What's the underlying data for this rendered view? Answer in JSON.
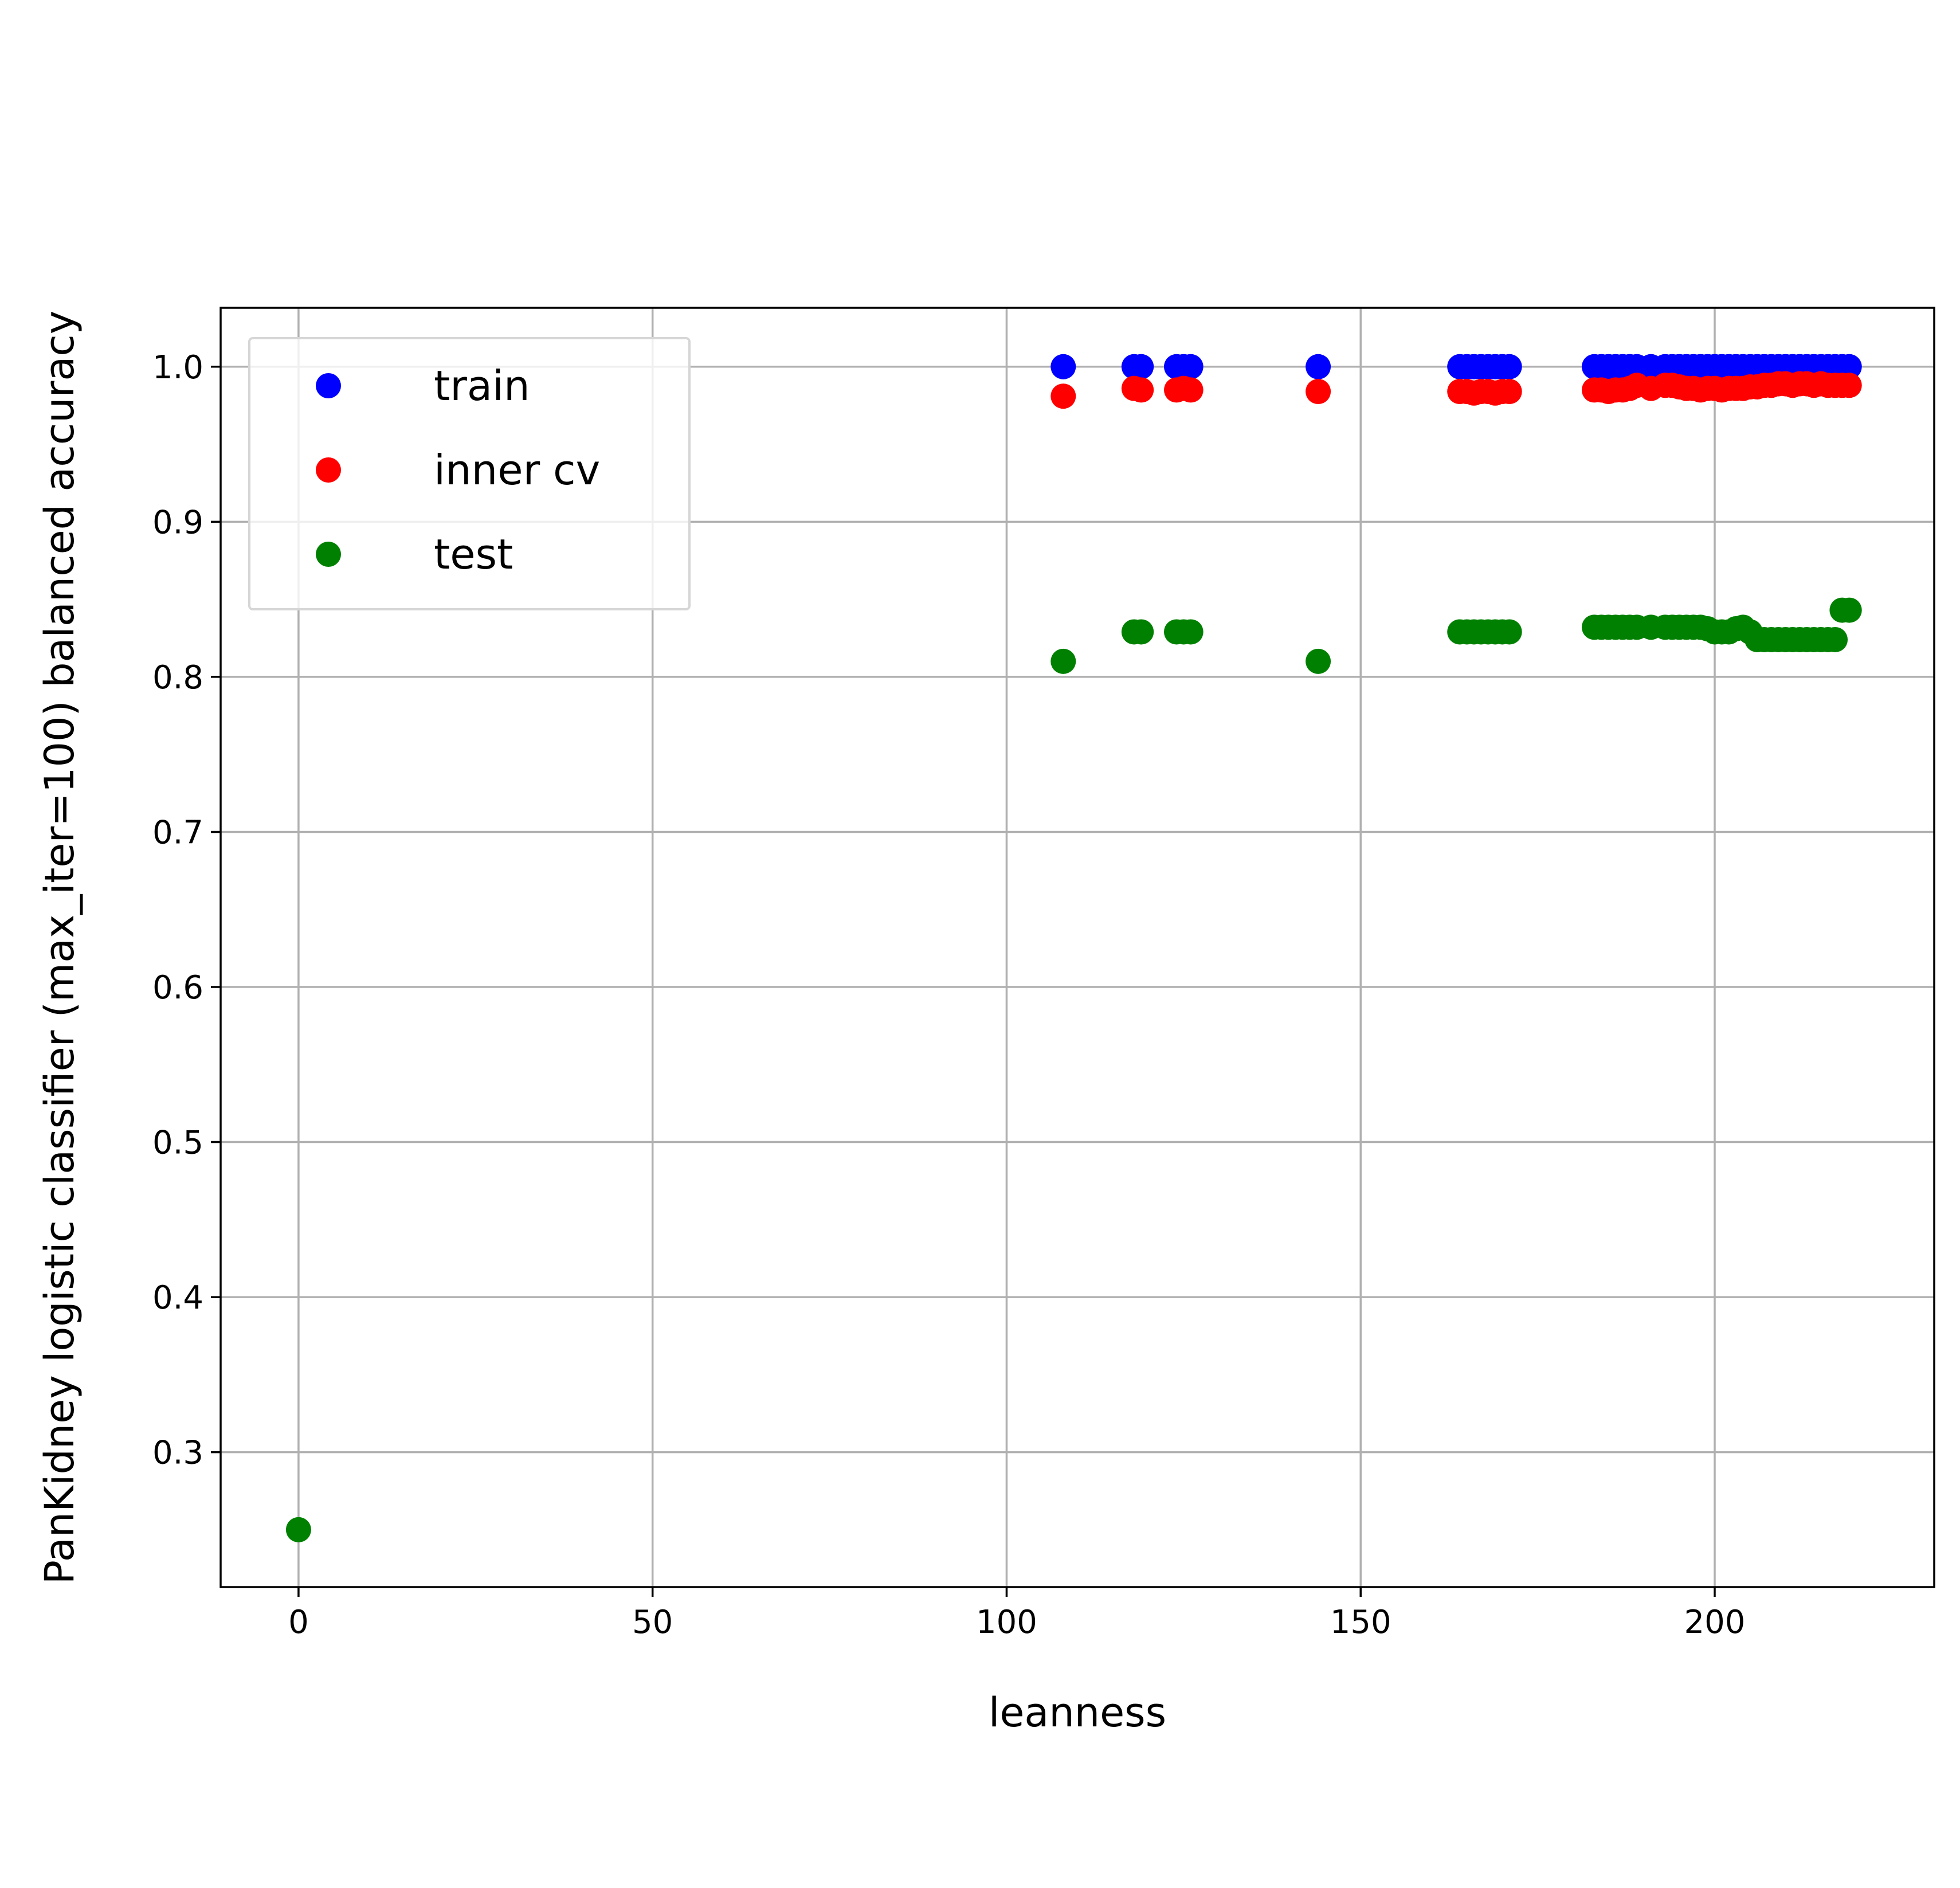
{
  "chart_data": {
    "type": "scatter",
    "title": "",
    "xlabel": "leanness",
    "ylabel": "PanKidney logistic classifier (max_iter=100) balanced accuracy",
    "xlim": [
      -11,
      231
    ],
    "ylim": [
      0.213,
      1.038
    ],
    "xticks": [
      0,
      50,
      100,
      150,
      200
    ],
    "yticks": [
      0.3,
      0.4,
      0.5,
      0.6,
      0.7,
      0.8,
      0.9,
      1.0
    ],
    "grid": true,
    "legend": {
      "placement": "top-left",
      "entries": [
        "train",
        "inner cv",
        "test"
      ]
    },
    "series": [
      {
        "name": "train",
        "color": "#0000ff",
        "points": [
          [
            108,
            1.0
          ],
          [
            118,
            1.0
          ],
          [
            119,
            1.0
          ],
          [
            124,
            1.0
          ],
          [
            125,
            1.0
          ],
          [
            126,
            1.0
          ],
          [
            144,
            1.0
          ],
          [
            164,
            1.0
          ],
          [
            165,
            1.0
          ],
          [
            166,
            1.0
          ],
          [
            167,
            1.0
          ],
          [
            168,
            1.0
          ],
          [
            169,
            1.0
          ],
          [
            170,
            1.0
          ],
          [
            171,
            1.0
          ],
          [
            183,
            1.0
          ],
          [
            184,
            1.0
          ],
          [
            185,
            1.0
          ],
          [
            186,
            1.0
          ],
          [
            187,
            1.0
          ],
          [
            188,
            1.0
          ],
          [
            189,
            1.0
          ],
          [
            191,
            1.0
          ],
          [
            193,
            1.0
          ],
          [
            194,
            1.0
          ],
          [
            195,
            1.0
          ],
          [
            196,
            1.0
          ],
          [
            197,
            1.0
          ],
          [
            198,
            1.0
          ],
          [
            199,
            1.0
          ],
          [
            200,
            1.0
          ],
          [
            201,
            1.0
          ],
          [
            202,
            1.0
          ],
          [
            203,
            1.0
          ],
          [
            204,
            1.0
          ],
          [
            205,
            1.0
          ],
          [
            206,
            1.0
          ],
          [
            207,
            1.0
          ],
          [
            208,
            1.0
          ],
          [
            209,
            1.0
          ],
          [
            210,
            1.0
          ],
          [
            211,
            1.0
          ],
          [
            212,
            1.0
          ],
          [
            213,
            1.0
          ],
          [
            214,
            1.0
          ],
          [
            215,
            1.0
          ],
          [
            216,
            1.0
          ],
          [
            217,
            1.0
          ],
          [
            218,
            1.0
          ],
          [
            219,
            1.0
          ]
        ]
      },
      {
        "name": "inner cv",
        "color": "#ff0000",
        "points": [
          [
            108,
            0.981
          ],
          [
            118,
            0.986
          ],
          [
            119,
            0.985
          ],
          [
            124,
            0.985
          ],
          [
            125,
            0.986
          ],
          [
            126,
            0.985
          ],
          [
            144,
            0.984
          ],
          [
            164,
            0.984
          ],
          [
            165,
            0.984
          ],
          [
            166,
            0.983
          ],
          [
            167,
            0.984
          ],
          [
            168,
            0.984
          ],
          [
            169,
            0.983
          ],
          [
            170,
            0.984
          ],
          [
            171,
            0.984
          ],
          [
            183,
            0.985
          ],
          [
            184,
            0.985
          ],
          [
            185,
            0.984
          ],
          [
            186,
            0.985
          ],
          [
            187,
            0.985
          ],
          [
            188,
            0.986
          ],
          [
            189,
            0.988
          ],
          [
            191,
            0.986
          ],
          [
            193,
            0.988
          ],
          [
            194,
            0.988
          ],
          [
            195,
            0.987
          ],
          [
            196,
            0.986
          ],
          [
            197,
            0.986
          ],
          [
            198,
            0.985
          ],
          [
            199,
            0.986
          ],
          [
            200,
            0.986
          ],
          [
            201,
            0.985
          ],
          [
            202,
            0.986
          ],
          [
            203,
            0.986
          ],
          [
            204,
            0.986
          ],
          [
            205,
            0.987
          ],
          [
            206,
            0.987
          ],
          [
            207,
            0.988
          ],
          [
            208,
            0.988
          ],
          [
            209,
            0.989
          ],
          [
            210,
            0.989
          ],
          [
            211,
            0.988
          ],
          [
            212,
            0.989
          ],
          [
            213,
            0.989
          ],
          [
            214,
            0.988
          ],
          [
            215,
            0.989
          ],
          [
            216,
            0.988
          ],
          [
            217,
            0.988
          ],
          [
            218,
            0.988
          ],
          [
            219,
            0.988
          ]
        ]
      },
      {
        "name": "test",
        "color": "#008000",
        "points": [
          [
            0,
            0.25
          ],
          [
            108,
            0.81
          ],
          [
            118,
            0.829
          ],
          [
            119,
            0.829
          ],
          [
            124,
            0.829
          ],
          [
            125,
            0.829
          ],
          [
            126,
            0.829
          ],
          [
            144,
            0.81
          ],
          [
            164,
            0.829
          ],
          [
            165,
            0.829
          ],
          [
            166,
            0.829
          ],
          [
            167,
            0.829
          ],
          [
            168,
            0.829
          ],
          [
            169,
            0.829
          ],
          [
            170,
            0.829
          ],
          [
            171,
            0.829
          ],
          [
            183,
            0.832
          ],
          [
            184,
            0.832
          ],
          [
            185,
            0.832
          ],
          [
            186,
            0.832
          ],
          [
            187,
            0.832
          ],
          [
            188,
            0.832
          ],
          [
            189,
            0.832
          ],
          [
            191,
            0.832
          ],
          [
            193,
            0.832
          ],
          [
            194,
            0.832
          ],
          [
            195,
            0.832
          ],
          [
            196,
            0.832
          ],
          [
            197,
            0.832
          ],
          [
            198,
            0.832
          ],
          [
            199,
            0.831
          ],
          [
            200,
            0.829
          ],
          [
            201,
            0.829
          ],
          [
            202,
            0.829
          ],
          [
            203,
            0.831
          ],
          [
            204,
            0.832
          ],
          [
            205,
            0.829
          ],
          [
            206,
            0.824
          ],
          [
            207,
            0.824
          ],
          [
            208,
            0.824
          ],
          [
            209,
            0.824
          ],
          [
            210,
            0.824
          ],
          [
            211,
            0.824
          ],
          [
            212,
            0.824
          ],
          [
            213,
            0.824
          ],
          [
            214,
            0.824
          ],
          [
            215,
            0.824
          ],
          [
            216,
            0.824
          ],
          [
            217,
            0.824
          ],
          [
            218,
            0.843
          ],
          [
            219,
            0.843
          ]
        ]
      }
    ]
  }
}
